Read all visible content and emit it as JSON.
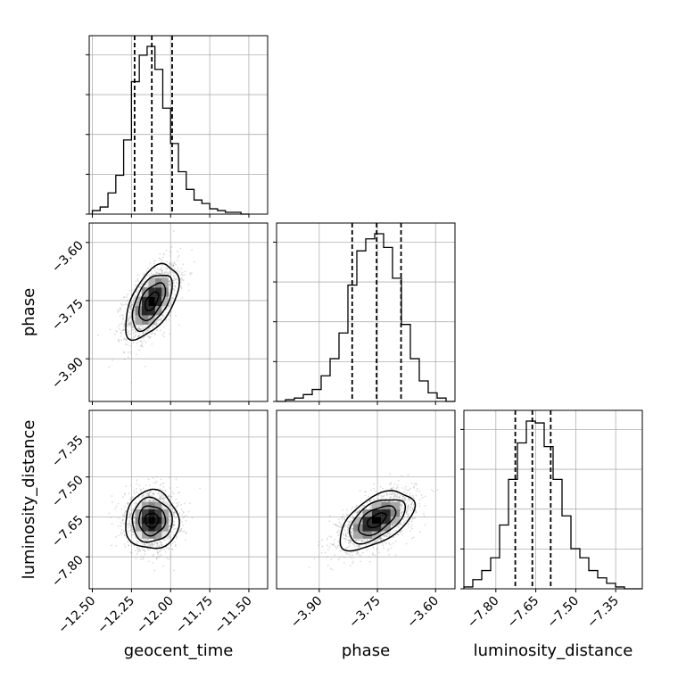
{
  "chart_data": {
    "type": "corner",
    "grid": true,
    "parameters": [
      {
        "name": "geocent_time",
        "label": "geocent_time",
        "ticks": [
          -12.5,
          -12.25,
          -12.0,
          -11.75,
          -11.5
        ],
        "tick_labels": [
          "−12.50",
          "−12.25",
          "−12.00",
          "−11.75",
          "−11.50"
        ],
        "range": [
          -12.52,
          -11.38
        ]
      },
      {
        "name": "phase",
        "label": "phase",
        "ticks": [
          -3.9,
          -3.75,
          -3.6
        ],
        "tick_labels": [
          "−3.90",
          "−3.75",
          "−3.60"
        ],
        "range": [
          -4.01,
          -3.55
        ]
      },
      {
        "name": "luminosity_distance",
        "label": "luminosity_distance",
        "ticks": [
          -7.8,
          -7.65,
          -7.5,
          -7.35
        ],
        "tick_labels": [
          "−7.80",
          "−7.65",
          "−7.50",
          "−7.35"
        ],
        "range": [
          -7.92,
          -7.25
        ]
      }
    ],
    "quantiles": {
      "geocent_time": [
        -12.23,
        -12.12,
        -11.99
      ],
      "phase": [
        -3.815,
        -3.752,
        -3.689
      ],
      "luminosity_distance": [
        -7.727,
        -7.663,
        -7.594
      ]
    },
    "histograms": [
      {
        "param": "geocent_time",
        "bin_edges": [
          -12.5,
          -12.45,
          -12.4,
          -12.35,
          -12.3,
          -12.25,
          -12.2,
          -12.15,
          -12.1,
          -12.05,
          -12.0,
          -11.95,
          -11.9,
          -11.85,
          -11.8,
          -11.75,
          -11.7,
          -11.65,
          -11.6,
          -11.55,
          -11.5
        ],
        "counts": [
          2,
          4,
          12,
          22,
          42,
          75,
          90,
          95,
          82,
          60,
          40,
          24,
          14,
          8,
          6,
          3,
          2,
          1,
          1,
          0
        ]
      },
      {
        "param": "phase",
        "bin_edges": [
          -4.01,
          -3.987,
          -3.964,
          -3.941,
          -3.918,
          -3.895,
          -3.872,
          -3.849,
          -3.826,
          -3.803,
          -3.78,
          -3.757,
          -3.734,
          -3.711,
          -3.688,
          -3.665,
          -3.642,
          -3.619,
          -3.596,
          -3.573,
          -3.55
        ],
        "counts": [
          0,
          1,
          2,
          4,
          7,
          15,
          25,
          40,
          68,
          88,
          95,
          98,
          90,
          72,
          45,
          25,
          12,
          5,
          2,
          0
        ]
      },
      {
        "param": "luminosity_distance",
        "bin_edges": [
          -7.92,
          -7.8865,
          -7.853,
          -7.8195,
          -7.786,
          -7.7525,
          -7.719,
          -7.6855,
          -7.652,
          -7.6185,
          -7.585,
          -7.5515,
          -7.518,
          -7.4845,
          -7.451,
          -7.4175,
          -7.384,
          -7.3505,
          -7.317,
          -7.2835,
          -7.25
        ],
        "counts": [
          1,
          5,
          10,
          17,
          35,
          60,
          80,
          92,
          91,
          78,
          60,
          40,
          22,
          17,
          10,
          6,
          3,
          1,
          0,
          0
        ]
      }
    ],
    "pairs": [
      {
        "x": "geocent_time",
        "y": "phase",
        "mean": [
          -12.12,
          -3.752
        ],
        "sd": [
          0.085,
          0.048
        ],
        "corr": 0.55
      },
      {
        "x": "geocent_time",
        "y": "luminosity_distance",
        "mean": [
          -12.12,
          -7.663
        ],
        "sd": [
          0.085,
          0.055
        ],
        "corr": 0.0
      },
      {
        "x": "phase",
        "y": "luminosity_distance",
        "mean": [
          -3.752,
          -7.663
        ],
        "sd": [
          0.048,
          0.055
        ],
        "corr": 0.55
      }
    ],
    "colors": {
      "line": "#000000",
      "grid": "#b0b0b0",
      "scatter": "#9a9a9a"
    }
  }
}
